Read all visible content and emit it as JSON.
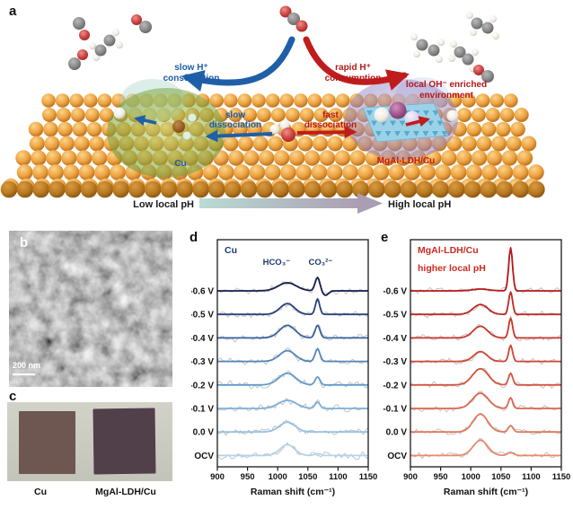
{
  "panel_letters": {
    "a": "a",
    "b": "b",
    "c": "c",
    "d": "d",
    "e": "e"
  },
  "panel_a": {
    "slow_h_line1": "slow H⁺",
    "slow_h_line2": "consumption",
    "rapid_h_line1": "rapid H⁺",
    "rapid_h_line2": "consumption",
    "oh_line1": "local OH⁻ enriched",
    "oh_line2": "environment",
    "slow_diss_line1": "slow",
    "slow_diss_line2": "dissociation",
    "fast_diss_line1": "fast",
    "fast_diss_line2": "dissociation",
    "cu_site_label": "Cu",
    "ldh_site_label": "MgAl-LDH/Cu",
    "ph_left": "Low local pH",
    "ph_right": "High local pH",
    "colors": {
      "blue": "#1d5ca8",
      "red": "#b51a1a"
    }
  },
  "panel_b": {
    "scale_label": "200 nm"
  },
  "panel_c": {
    "label_left": "Cu",
    "label_right": "MgAl-LDH/Cu"
  },
  "chart_data": [
    {
      "type": "line",
      "panel": "d",
      "title": "Cu",
      "title_color": "#1c3a6e",
      "peak_labels": [
        {
          "text": "HCO₃⁻",
          "x": 998
        },
        {
          "text": "CO₃²⁻",
          "x": 1071
        }
      ],
      "xlabel": "Raman shift (cm⁻¹)",
      "x_range": [
        900,
        1150
      ],
      "x_ticks": [
        "900",
        "950",
        "1000",
        "1050",
        "1100",
        "1150"
      ],
      "hco3_center": 1016,
      "co3_center": 1066,
      "noise_color": "#bdbdbd",
      "noise_amp": 2.6,
      "series": [
        {
          "label": "-0.6 V",
          "color": "#141f4b",
          "hco3_amp": 9,
          "hco3_sigma": 15,
          "co3_amp": 15,
          "co3_sigma": 4,
          "dip_amp": 5,
          "dip_center": 1079,
          "dip_sigma": 5
        },
        {
          "label": "-0.5 V",
          "color": "#27427c",
          "hco3_amp": 12,
          "hco3_sigma": 12,
          "co3_amp": 17,
          "co3_sigma": 3.5
        },
        {
          "label": "-0.4 V",
          "color": "#3a64a0",
          "hco3_amp": 14,
          "hco3_sigma": 13,
          "co3_amp": 14,
          "co3_sigma": 4
        },
        {
          "label": "-0.3 V",
          "color": "#5386bd",
          "hco3_amp": 12,
          "hco3_sigma": 13,
          "co3_amp": 14,
          "co3_sigma": 4
        },
        {
          "label": "-0.2 V",
          "color": "#619cd0",
          "hco3_amp": 13,
          "hco3_sigma": 14,
          "co3_amp": 9,
          "co3_sigma": 4
        },
        {
          "label": "-0.1 V",
          "color": "#7db0da",
          "hco3_amp": 9,
          "hco3_sigma": 15,
          "co3_amp": 7,
          "co3_sigma": 4
        },
        {
          "label": "0.0 V",
          "color": "#97c2e3",
          "hco3_amp": 11,
          "hco3_sigma": 13,
          "co3_amp": 0,
          "co3_sigma": 4
        },
        {
          "label": "OCV",
          "color": "#b3d3ea",
          "hco3_amp": 12,
          "hco3_sigma": 12,
          "co3_amp": 2,
          "co3_sigma": 5
        }
      ]
    },
    {
      "type": "line",
      "panel": "e",
      "title": "MgAl-LDH/Cu",
      "subtitle": "higher local pH",
      "title_color": "#cf2a21",
      "peak_labels": [],
      "xlabel": "Raman shift (cm⁻¹)",
      "x_range": [
        900,
        1150
      ],
      "x_ticks": [
        "900",
        "950",
        "1000",
        "1050",
        "1100",
        "1150"
      ],
      "hco3_center": 1016,
      "co3_center": 1066,
      "noise_color": "#bdbdbd",
      "noise_amp": 2.2,
      "series": [
        {
          "label": "-0.6 V",
          "color": "#b5181c",
          "hco3_amp": 2,
          "hco3_sigma": 14,
          "co3_amp": 48,
          "co3_sigma": 3.2
        },
        {
          "label": "-0.5 V",
          "color": "#c02823",
          "hco3_amp": 11,
          "hco3_sigma": 12,
          "co3_amp": 25,
          "co3_sigma": 3.2
        },
        {
          "label": "-0.4 V",
          "color": "#c8372a",
          "hco3_amp": 13,
          "hco3_sigma": 12,
          "co3_amp": 22,
          "co3_sigma": 3.2
        },
        {
          "label": "-0.3 V",
          "color": "#cf4634",
          "hco3_amp": 11,
          "hco3_sigma": 11,
          "co3_amp": 18,
          "co3_sigma": 3.2
        },
        {
          "label": "-0.2 V",
          "color": "#d5563f",
          "hco3_amp": 18,
          "hco3_sigma": 13,
          "co3_amp": 13,
          "co3_sigma": 3.5
        },
        {
          "label": "-0.1 V",
          "color": "#dc674d",
          "hco3_amp": 17,
          "hco3_sigma": 13,
          "co3_amp": 12,
          "co3_sigma": 3.5
        },
        {
          "label": "0.0 V",
          "color": "#e2785c",
          "hco3_amp": 20,
          "hco3_sigma": 12,
          "co3_amp": 7,
          "co3_sigma": 4
        },
        {
          "label": "OCV",
          "color": "#e88a6d",
          "hco3_amp": 17,
          "hco3_sigma": 12,
          "co3_amp": 3.5,
          "co3_sigma": 5
        }
      ]
    }
  ]
}
